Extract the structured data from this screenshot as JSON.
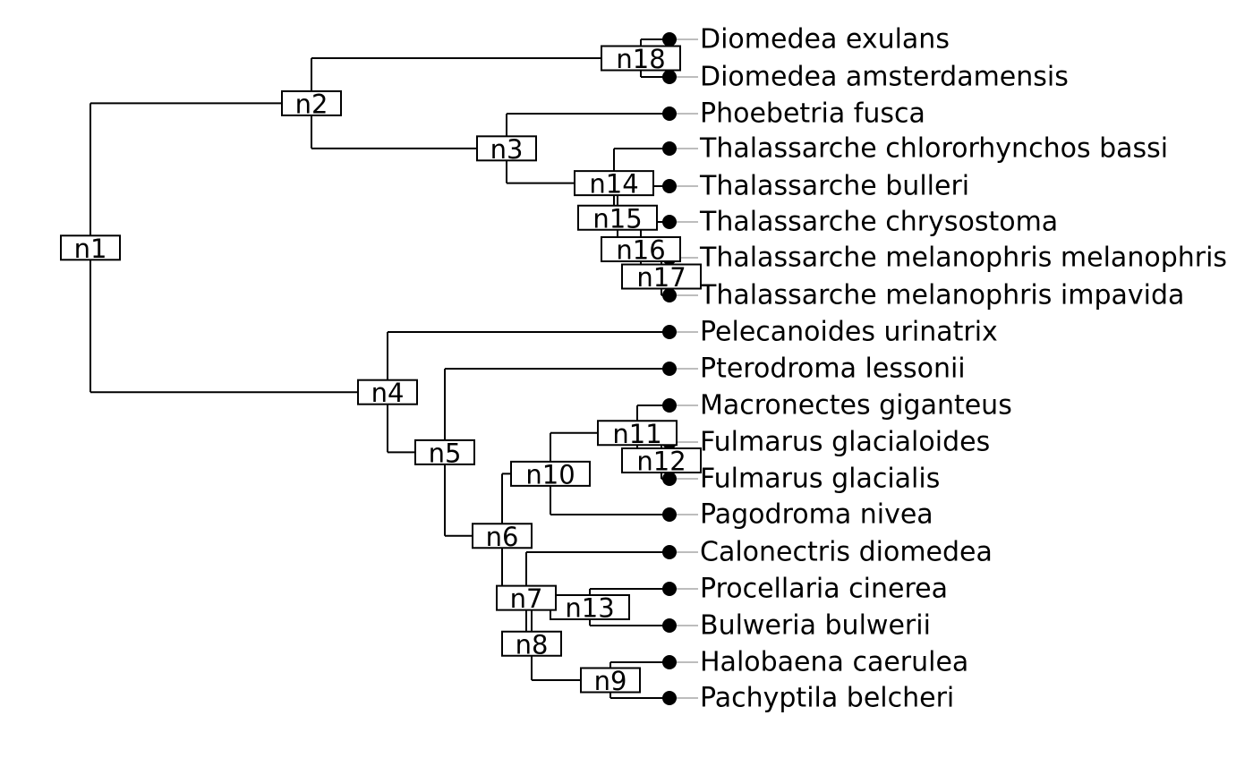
{
  "tree": {
    "id": "n1",
    "children": [
      {
        "id": "n2",
        "children": [
          {
            "id": "n18",
            "children": [
              {
                "tip": "Diomedea exulans"
              },
              {
                "tip": "Diomedea amsterdamensis"
              }
            ]
          },
          {
            "id": "n3",
            "children": [
              {
                "tip": "Phoebetria fusca"
              },
              {
                "id": "n14",
                "children": [
                  {
                    "tip": "Thalassarche chlororhynchos bassi"
                  },
                  {
                    "id": "n15",
                    "children": [
                      {
                        "tip": "Thalassarche bulleri"
                      },
                      {
                        "id": "n16",
                        "children": [
                          {
                            "tip": "Thalassarche chrysostoma"
                          },
                          {
                            "id": "n17",
                            "children": [
                              {
                                "tip": "Thalassarche melanophris melanophris"
                              },
                              {
                                "tip": "Thalassarche melanophris impavida"
                              }
                            ]
                          }
                        ]
                      }
                    ]
                  }
                ]
              }
            ]
          }
        ]
      },
      {
        "id": "n4",
        "children": [
          {
            "tip": "Pelecanoides urinatrix"
          },
          {
            "id": "n5",
            "children": [
              {
                "tip": "Pterodroma lessonii"
              },
              {
                "id": "n6",
                "children": [
                  {
                    "id": "n10",
                    "children": [
                      {
                        "id": "n11",
                        "children": [
                          {
                            "tip": "Macronectes giganteus"
                          },
                          {
                            "id": "n12",
                            "children": [
                              {
                                "tip": "Fulmarus glacialoides"
                              },
                              {
                                "tip": "Fulmarus glacialis"
                              }
                            ]
                          }
                        ]
                      },
                      {
                        "tip": "Pagodroma nivea"
                      }
                    ]
                  },
                  {
                    "id": "n7",
                    "children": [
                      {
                        "tip": "Calonectris diomedea"
                      },
                      {
                        "id": "n8",
                        "children": [
                          {
                            "id": "n13",
                            "children": [
                              {
                                "tip": "Procellaria cinerea"
                              },
                              {
                                "tip": "Bulweria bulwerii"
                              }
                            ]
                          },
                          {
                            "id": "n9",
                            "children": [
                              {
                                "tip": "Halobaena caerulea"
                              },
                              {
                                "tip": "Pachyptila belcheri"
                              }
                            ]
                          }
                        ]
                      }
                    ]
                  }
                ]
              }
            ]
          }
        ]
      }
    ]
  }
}
